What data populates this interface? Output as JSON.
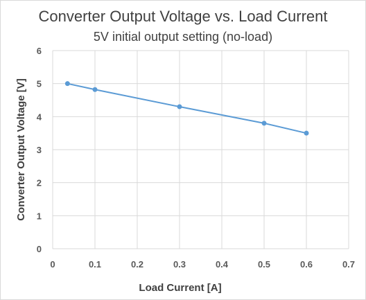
{
  "chart_data": {
    "type": "line",
    "title": "Converter Output Voltage vs. Load Current",
    "subtitle": "5V initial output setting (no-load)",
    "xlabel": "Load Current [A]",
    "ylabel": "Converter Output Voltage [V]",
    "xlim": [
      0,
      0.7
    ],
    "ylim": [
      0,
      6
    ],
    "x_ticks": [
      "0",
      "0.1",
      "0.2",
      "0.3",
      "0.4",
      "0.5",
      "0.6",
      "0.7"
    ],
    "y_ticks": [
      "0",
      "1",
      "2",
      "3",
      "4",
      "5",
      "6"
    ],
    "grid": true,
    "series": [
      {
        "x": [
          0.035,
          0.1,
          0.3,
          0.5,
          0.6
        ],
        "y": [
          5.0,
          4.82,
          4.3,
          3.8,
          3.5
        ],
        "color": "#5b9bd5",
        "marker": "circle"
      }
    ]
  }
}
